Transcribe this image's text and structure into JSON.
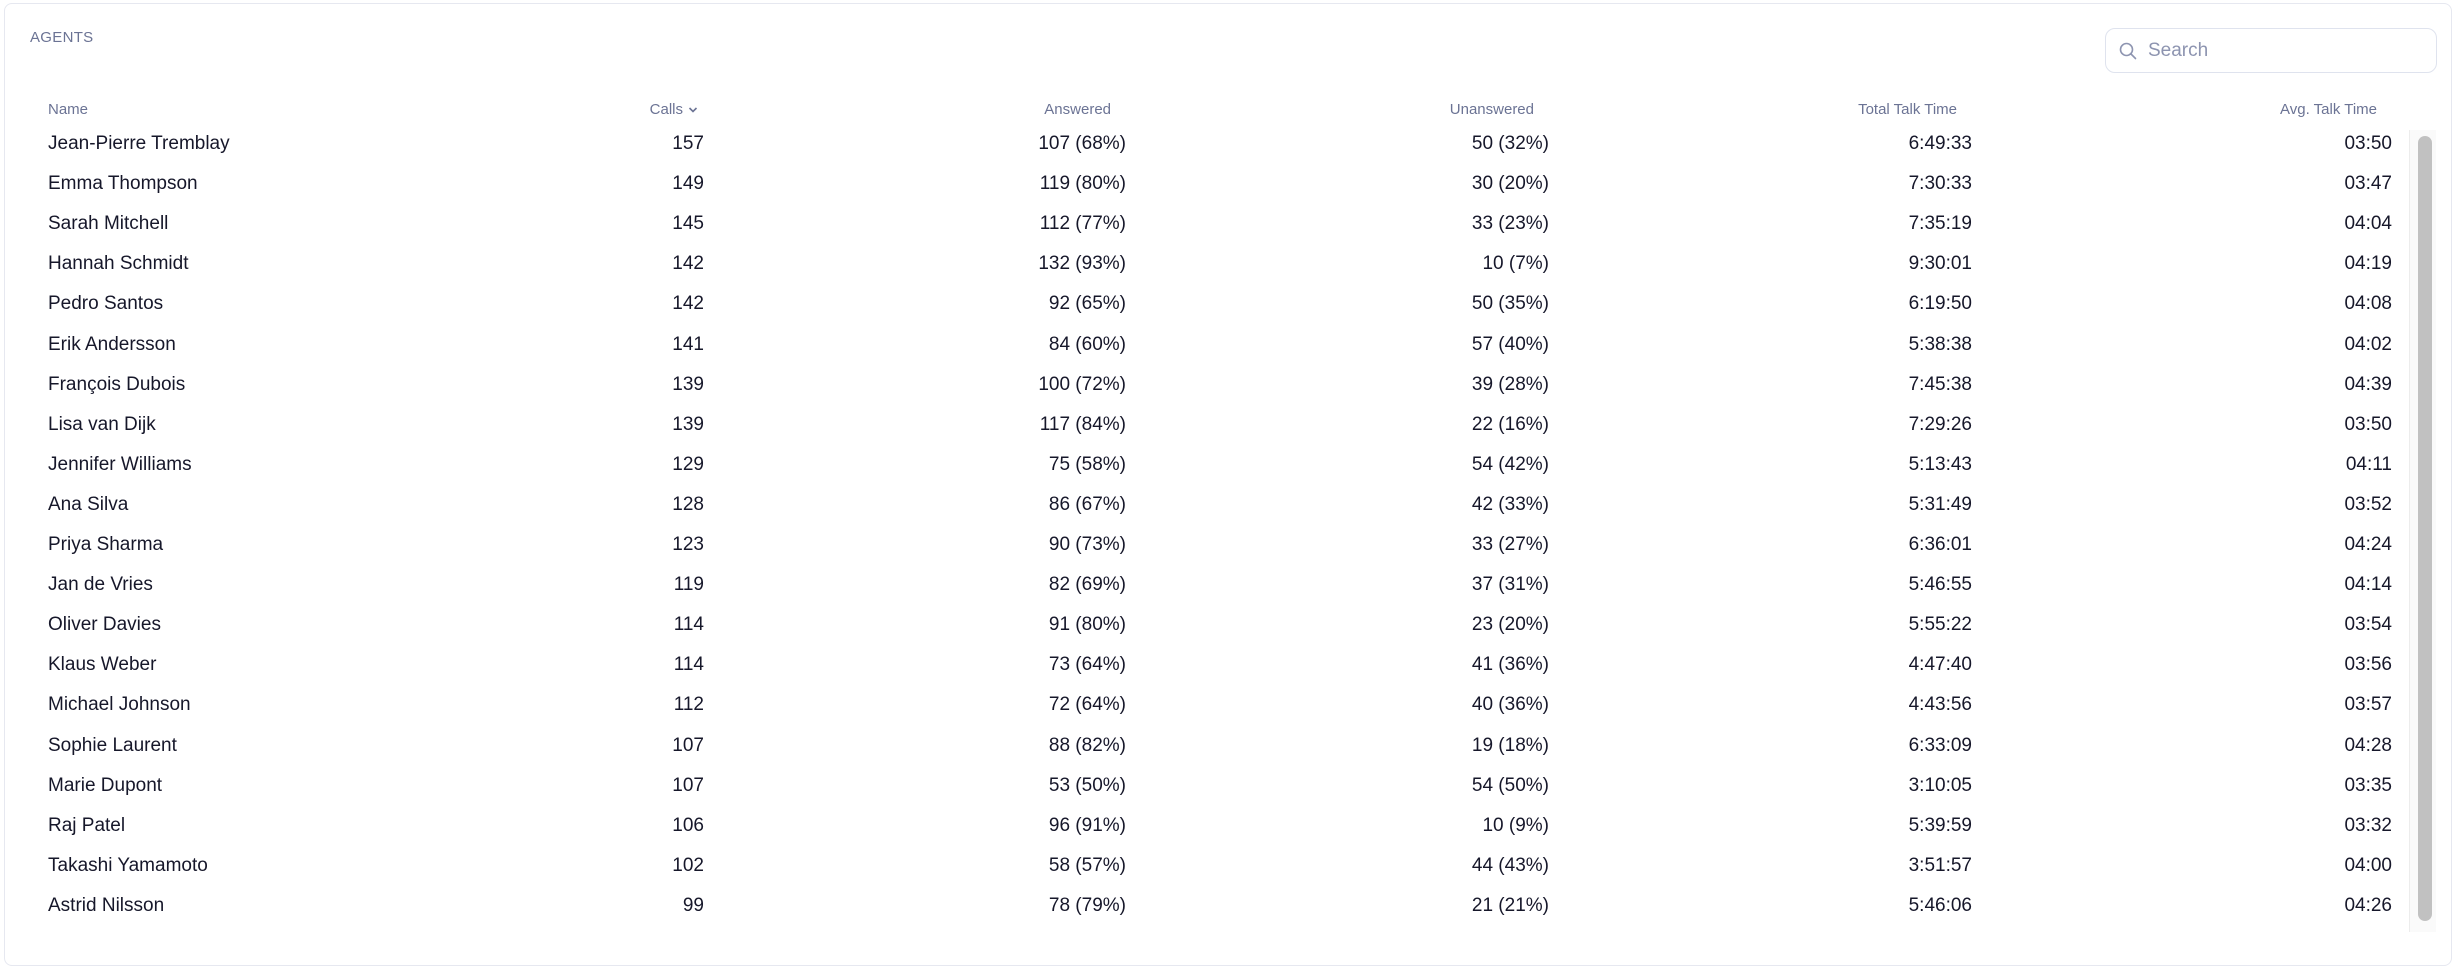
{
  "panel": {
    "title": "AGENTS"
  },
  "search": {
    "placeholder": "Search",
    "value": "",
    "icon": "search-icon"
  },
  "table": {
    "columns": [
      {
        "key": "name",
        "label": "Name"
      },
      {
        "key": "calls",
        "label": "Calls",
        "sorted": "desc"
      },
      {
        "key": "answered",
        "label": "Answered"
      },
      {
        "key": "unanswered",
        "label": "Unanswered"
      },
      {
        "key": "total",
        "label": "Total Talk Time"
      },
      {
        "key": "avg",
        "label": "Avg. Talk Time"
      }
    ],
    "rows": [
      {
        "name": "Jean-Pierre Tremblay",
        "calls": "157",
        "answered": "107 (68%)",
        "unanswered": "50 (32%)",
        "total": "6:49:33",
        "avg": "03:50"
      },
      {
        "name": "Emma Thompson",
        "calls": "149",
        "answered": "119 (80%)",
        "unanswered": "30 (20%)",
        "total": "7:30:33",
        "avg": "03:47"
      },
      {
        "name": "Sarah Mitchell",
        "calls": "145",
        "answered": "112 (77%)",
        "unanswered": "33 (23%)",
        "total": "7:35:19",
        "avg": "04:04"
      },
      {
        "name": "Hannah Schmidt",
        "calls": "142",
        "answered": "132 (93%)",
        "unanswered": "10 (7%)",
        "total": "9:30:01",
        "avg": "04:19"
      },
      {
        "name": "Pedro Santos",
        "calls": "142",
        "answered": "92 (65%)",
        "unanswered": "50 (35%)",
        "total": "6:19:50",
        "avg": "04:08"
      },
      {
        "name": "Erik Andersson",
        "calls": "141",
        "answered": "84 (60%)",
        "unanswered": "57 (40%)",
        "total": "5:38:38",
        "avg": "04:02"
      },
      {
        "name": "François Dubois",
        "calls": "139",
        "answered": "100 (72%)",
        "unanswered": "39 (28%)",
        "total": "7:45:38",
        "avg": "04:39"
      },
      {
        "name": "Lisa van Dijk",
        "calls": "139",
        "answered": "117 (84%)",
        "unanswered": "22 (16%)",
        "total": "7:29:26",
        "avg": "03:50"
      },
      {
        "name": "Jennifer Williams",
        "calls": "129",
        "answered": "75 (58%)",
        "unanswered": "54 (42%)",
        "total": "5:13:43",
        "avg": "04:11"
      },
      {
        "name": "Ana Silva",
        "calls": "128",
        "answered": "86 (67%)",
        "unanswered": "42 (33%)",
        "total": "5:31:49",
        "avg": "03:52"
      },
      {
        "name": "Priya Sharma",
        "calls": "123",
        "answered": "90 (73%)",
        "unanswered": "33 (27%)",
        "total": "6:36:01",
        "avg": "04:24"
      },
      {
        "name": "Jan de Vries",
        "calls": "119",
        "answered": "82 (69%)",
        "unanswered": "37 (31%)",
        "total": "5:46:55",
        "avg": "04:14"
      },
      {
        "name": "Oliver Davies",
        "calls": "114",
        "answered": "91 (80%)",
        "unanswered": "23 (20%)",
        "total": "5:55:22",
        "avg": "03:54"
      },
      {
        "name": "Klaus Weber",
        "calls": "114",
        "answered": "73 (64%)",
        "unanswered": "41 (36%)",
        "total": "4:47:40",
        "avg": "03:56"
      },
      {
        "name": "Michael Johnson",
        "calls": "112",
        "answered": "72 (64%)",
        "unanswered": "40 (36%)",
        "total": "4:43:56",
        "avg": "03:57"
      },
      {
        "name": "Sophie Laurent",
        "calls": "107",
        "answered": "88 (82%)",
        "unanswered": "19 (18%)",
        "total": "6:33:09",
        "avg": "04:28"
      },
      {
        "name": "Marie Dupont",
        "calls": "107",
        "answered": "53 (50%)",
        "unanswered": "54 (50%)",
        "total": "3:10:05",
        "avg": "03:35"
      },
      {
        "name": "Raj Patel",
        "calls": "106",
        "answered": "96 (91%)",
        "unanswered": "10 (9%)",
        "total": "5:39:59",
        "avg": "03:32"
      },
      {
        "name": "Takashi Yamamoto",
        "calls": "102",
        "answered": "58 (57%)",
        "unanswered": "44 (43%)",
        "total": "3:51:57",
        "avg": "04:00"
      },
      {
        "name": "Astrid Nilsson",
        "calls": "99",
        "answered": "78 (79%)",
        "unanswered": "21 (21%)",
        "total": "5:46:06",
        "avg": "04:26"
      }
    ]
  },
  "colors": {
    "header_text": "#6b7394",
    "body_text": "#16172a",
    "border": "#e6e8f0",
    "scrollbar_thumb": "#c1c1c1"
  }
}
